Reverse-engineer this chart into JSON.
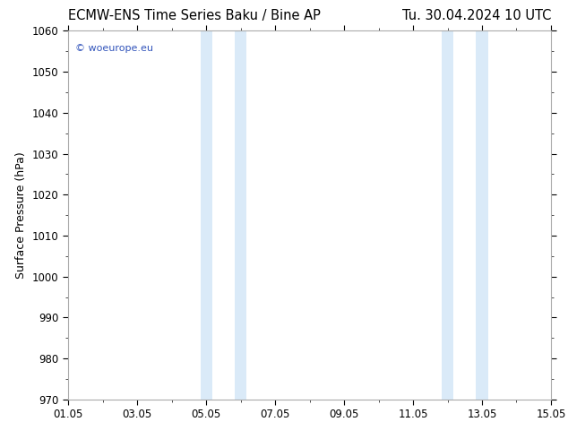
{
  "title_left": "ECMW-ENS Time Series Baku / Bine AP",
  "title_right": "Tu. 30.04.2024 10 UTC",
  "ylabel": "Surface Pressure (hPa)",
  "ylim": [
    970,
    1060
  ],
  "yticks": [
    970,
    980,
    990,
    1000,
    1010,
    1020,
    1030,
    1040,
    1050,
    1060
  ],
  "xlim_start": 0,
  "xlim_end": 14,
  "xtick_labels": [
    "01.05",
    "03.05",
    "05.05",
    "07.05",
    "09.05",
    "11.05",
    "13.05",
    "15.05"
  ],
  "xtick_positions": [
    0,
    2,
    4,
    6,
    8,
    10,
    12,
    14
  ],
  "shaded_regions": [
    {
      "xmin": 3.83,
      "xmax": 4.17,
      "color": "#daeaf8"
    },
    {
      "xmin": 4.83,
      "xmax": 5.17,
      "color": "#daeaf8"
    },
    {
      "xmin": 10.83,
      "xmax": 11.17,
      "color": "#daeaf8"
    },
    {
      "xmin": 11.83,
      "xmax": 12.17,
      "color": "#daeaf8"
    }
  ],
  "watermark_text": "© woeurope.eu",
  "watermark_color": "#3355bb",
  "background_color": "#ffffff",
  "spine_color": "#aaaaaa",
  "title_fontsize": 10.5,
  "axis_label_fontsize": 9,
  "tick_fontsize": 8.5
}
